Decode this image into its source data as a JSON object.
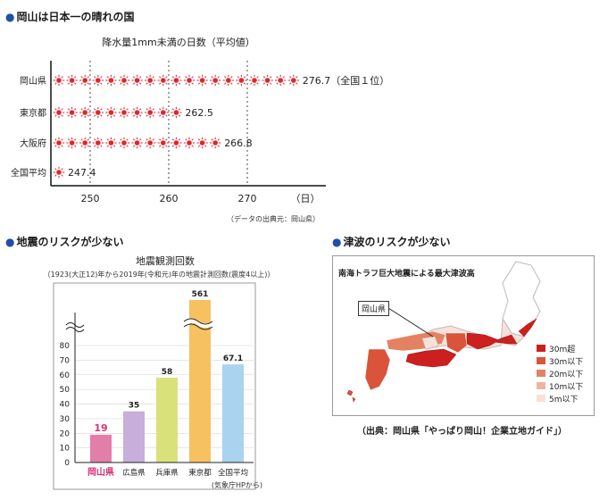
{
  "section1": {
    "heading": "岡山は日本一の晴れの国",
    "chart_data": {
      "type": "bar",
      "title": "降水量1mm未満の日数（平均値）",
      "categories": [
        "岡山県",
        "東京都",
        "大阪府",
        "全国平均"
      ],
      "values": [
        276.7,
        262.5,
        266.8,
        247.4
      ],
      "value_labels": [
        "276.7（全国１位）",
        "262.5",
        "266.8",
        "247.4"
      ],
      "xticks": [
        "250",
        "260",
        "270"
      ],
      "xtick_values": [
        250,
        260,
        270
      ],
      "xunit": "（日）",
      "xlim": [
        245,
        280
      ],
      "grid": true,
      "source": "（データの出典元：岡山県）",
      "marker_color": "#e3242b"
    }
  },
  "section2": {
    "heading": "地震のリスクが少ない",
    "chart_data": {
      "type": "bar",
      "title": "地震観測回数",
      "subtitle": "（1923(大正12)年から2019年(令和元)年の地震計測回数(震度4以上)）",
      "categories": [
        "岡山県",
        "広島県",
        "兵庫県",
        "東京都",
        "全国平均"
      ],
      "values": [
        19,
        35,
        58,
        561,
        67.1
      ],
      "value_labels": [
        "19",
        "35",
        "58",
        "561",
        "67.1"
      ],
      "colors": [
        "#e27fa8",
        "#c8aedb",
        "#d9e27a",
        "#f6c160",
        "#a9d3ef"
      ],
      "highlight_color": "#d6337a",
      "yticks": [
        "0",
        "10",
        "20",
        "30",
        "40",
        "50",
        "60",
        "70",
        "80"
      ],
      "ytick_values": [
        0,
        10,
        20,
        30,
        40,
        50,
        60,
        70,
        80
      ],
      "ylim": [
        0,
        80
      ],
      "axis_break": true,
      "source": "(気象庁HPから)"
    }
  },
  "section3": {
    "heading": "津波のリスクが少ない",
    "map_title": "南海トラフ巨大地震による最大津波高",
    "callout": "岡山県",
    "legend": [
      {
        "label": "30m超",
        "color": "#cc1f1f"
      },
      {
        "label": "30m以下",
        "color": "#d9543a"
      },
      {
        "label": "20m以下",
        "color": "#e58163"
      },
      {
        "label": "10m以下",
        "color": "#efb3a0"
      },
      {
        "label": "5m以下",
        "color": "#f8e1d8"
      }
    ],
    "credit": "（出典：岡山県「やっぱり岡山！企業立地ガイド」）"
  }
}
